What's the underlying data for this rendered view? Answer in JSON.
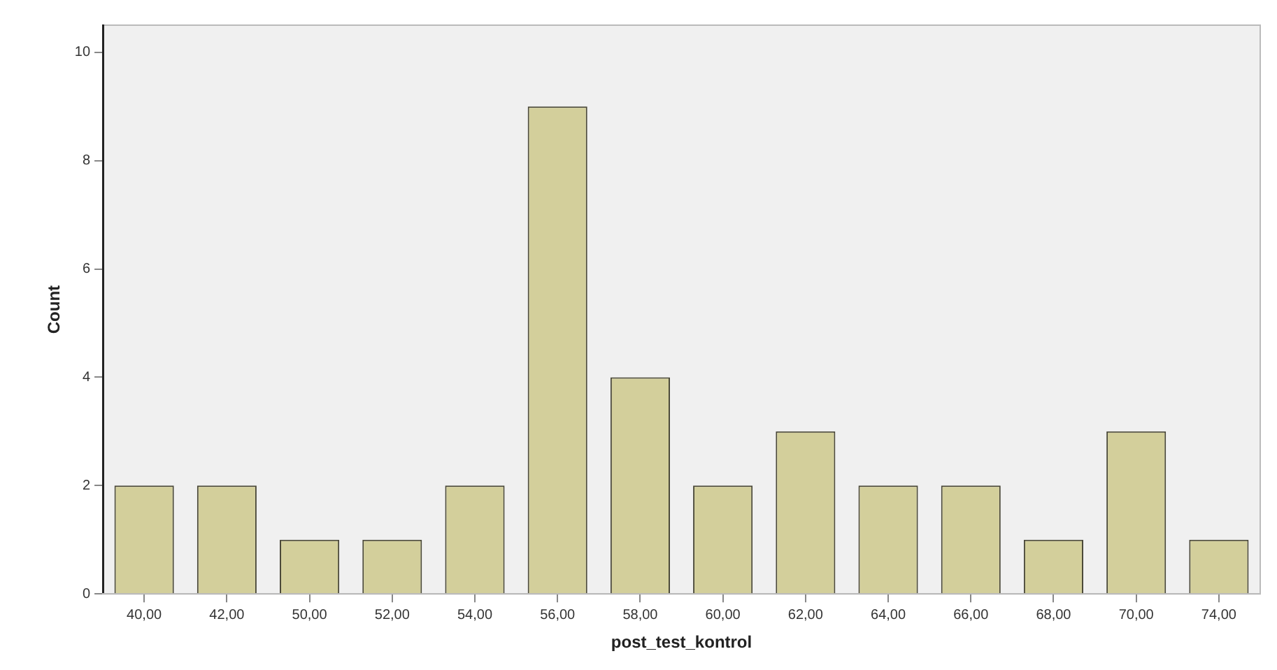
{
  "chart_data": {
    "type": "bar",
    "xlabel": "post_test_kontrol",
    "ylabel": "Count",
    "categories": [
      "40,00",
      "42,00",
      "50,00",
      "52,00",
      "54,00",
      "56,00",
      "58,00",
      "60,00",
      "62,00",
      "64,00",
      "66,00",
      "68,00",
      "70,00",
      "74,00"
    ],
    "values": [
      2,
      2,
      1,
      1,
      2,
      9,
      4,
      2,
      3,
      2,
      2,
      1,
      3,
      1
    ],
    "color": "#d3cf9b",
    "ylim": [
      0,
      10.5
    ],
    "yticks": [
      0,
      2,
      4,
      6,
      8,
      10
    ],
    "grid": false,
    "legend": false
  }
}
